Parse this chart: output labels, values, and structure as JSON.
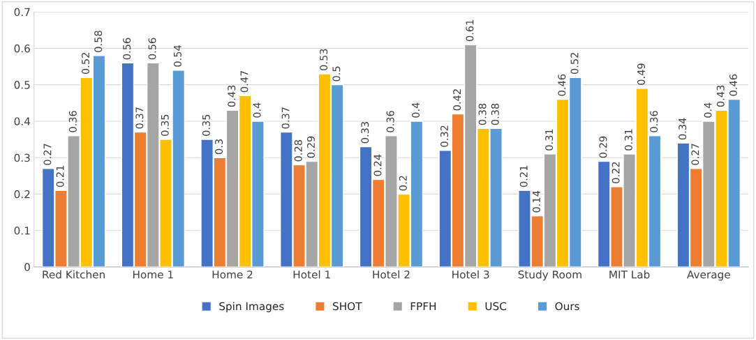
{
  "chart_data": {
    "type": "bar",
    "categories": [
      "Red Kitchen",
      "Home 1",
      "Home 2",
      "Hotel 1",
      "Hotel 2",
      "Hotel 3",
      "Study Room",
      "MIT Lab",
      "Average"
    ],
    "series": [
      {
        "name": "Spin Images",
        "color": "#4472c4",
        "values": [
          0.27,
          0.56,
          0.35,
          0.37,
          0.33,
          0.32,
          0.21,
          0.29,
          0.34
        ]
      },
      {
        "name": "SHOT",
        "color": "#ed7d31",
        "values": [
          0.21,
          0.37,
          0.3,
          0.28,
          0.24,
          0.42,
          0.14,
          0.22,
          0.27
        ]
      },
      {
        "name": "FPFH",
        "color": "#a5a5a5",
        "values": [
          0.36,
          0.56,
          0.43,
          0.29,
          0.36,
          0.61,
          0.31,
          0.31,
          0.4
        ]
      },
      {
        "name": "USC",
        "color": "#ffc000",
        "values": [
          0.52,
          0.35,
          0.47,
          0.53,
          0.2,
          0.38,
          0.46,
          0.49,
          0.43
        ]
      },
      {
        "name": "Ours",
        "color": "#5b9bd5",
        "values": [
          0.58,
          0.54,
          0.4,
          0.5,
          0.4,
          0.38,
          0.52,
          0.36,
          0.46
        ]
      }
    ],
    "ylim": [
      0,
      0.7
    ],
    "yticks": [
      0,
      0.1,
      0.2,
      0.3,
      0.4,
      0.5,
      0.6,
      0.7
    ],
    "grid": "y",
    "legend": "bottom",
    "data_labels": true
  }
}
